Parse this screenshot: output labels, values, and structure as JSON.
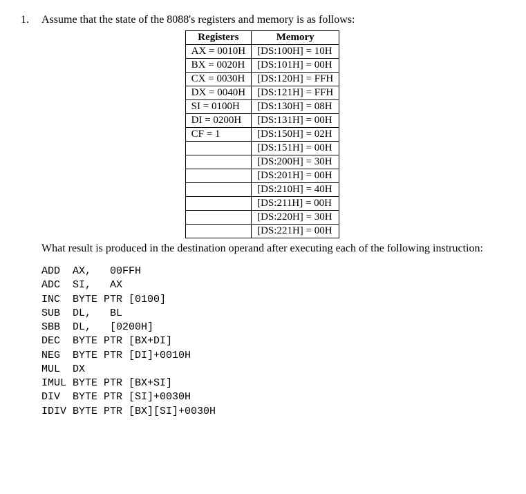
{
  "question": {
    "number": "1.",
    "prompt_before": "Assume that the state of the 8088's registers and memory is as follows:",
    "prompt_after": "What result is produced in the destination operand after executing each of the following instruction:"
  },
  "table": {
    "headers": [
      "Registers",
      "Memory"
    ],
    "rows": [
      [
        "AX = 0010H",
        "[DS:100H] = 10H"
      ],
      [
        "BX = 0020H",
        "[DS:101H] = 00H"
      ],
      [
        "CX = 0030H",
        "[DS:120H] = FFH"
      ],
      [
        "DX = 0040H",
        "[DS:121H] = FFH"
      ],
      [
        "SI = 0100H",
        "[DS:130H] = 08H"
      ],
      [
        "DI = 0200H",
        "[DS:131H] = 00H"
      ],
      [
        "CF = 1",
        "[DS:150H] = 02H"
      ],
      [
        "",
        "[DS:151H] = 00H"
      ],
      [
        "",
        "[DS:200H] = 30H"
      ],
      [
        "",
        "[DS:201H] = 00H"
      ],
      [
        "",
        "[DS:210H] = 40H"
      ],
      [
        "",
        "[DS:211H] = 00H"
      ],
      [
        "",
        "[DS:220H] = 30H"
      ],
      [
        "",
        "[DS:221H] = 00H"
      ]
    ]
  },
  "instructions": [
    "ADD  AX,   00FFH",
    "ADC  SI,   AX",
    "INC  BYTE PTR [0100]",
    "SUB  DL,   BL",
    "SBB  DL,   [0200H]",
    "DEC  BYTE PTR [BX+DI]",
    "NEG  BYTE PTR [DI]+0010H",
    "MUL  DX",
    "IMUL BYTE PTR [BX+SI]",
    "DIV  BYTE PTR [SI]+0030H",
    "IDIV BYTE PTR [BX][SI]+0030H"
  ]
}
